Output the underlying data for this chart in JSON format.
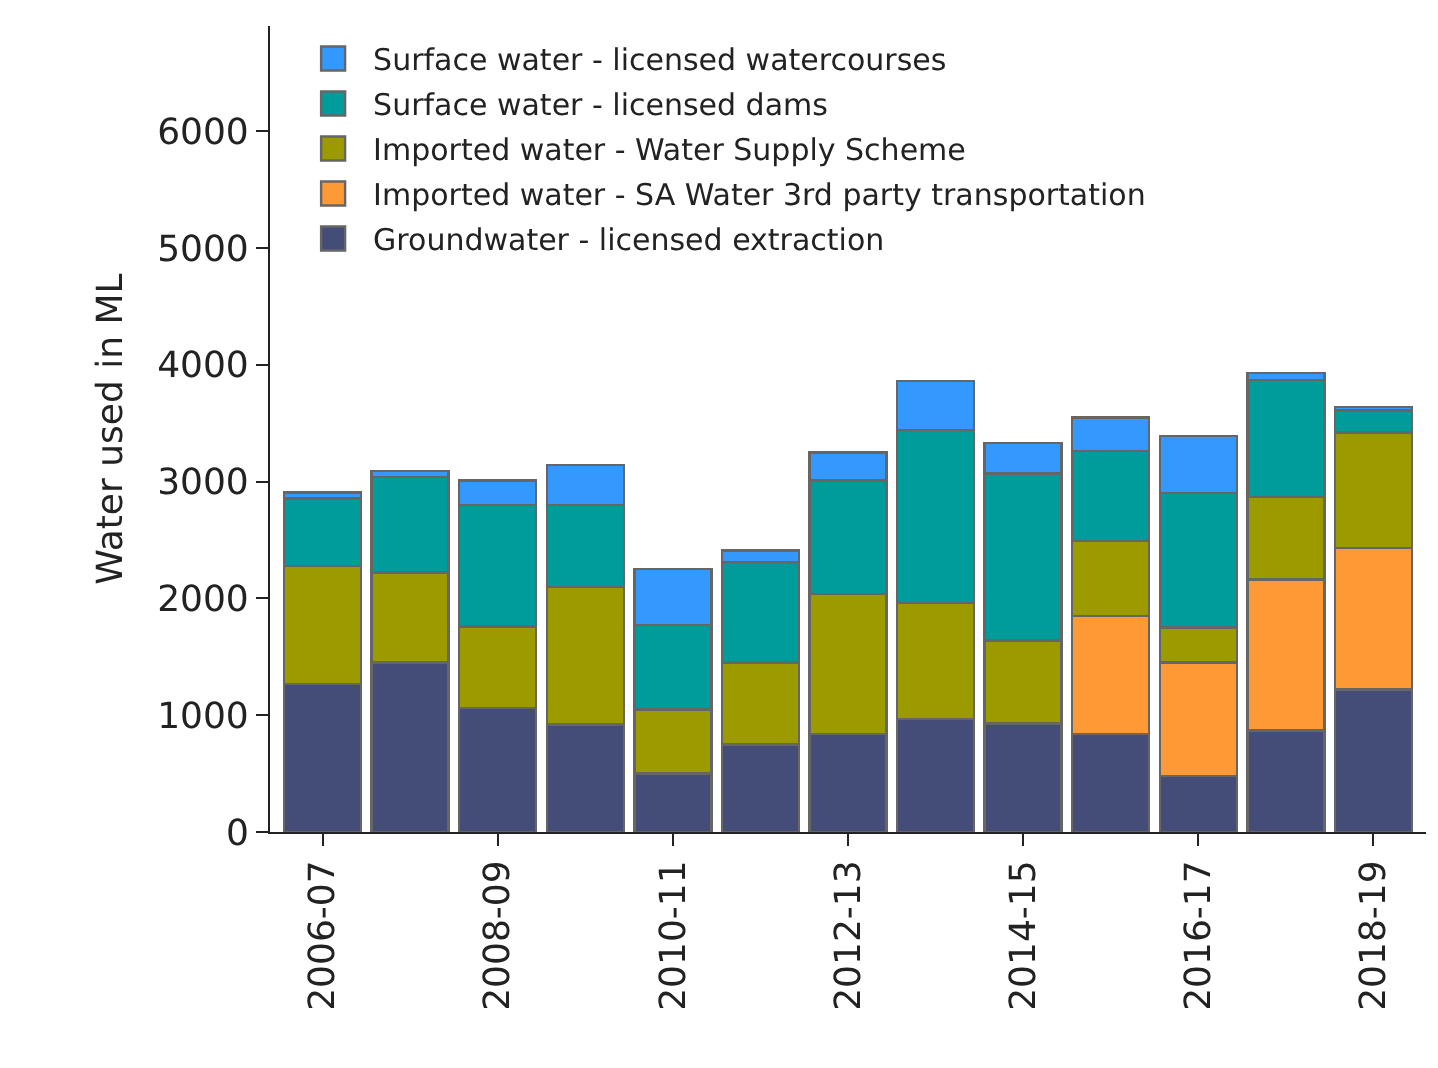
{
  "chart_data": {
    "type": "bar",
    "stacked": true,
    "ylabel": "Water used in ML",
    "categories": [
      "2006-07",
      null,
      "2008-09",
      null,
      "2010-11",
      null,
      "2012-13",
      null,
      "2014-15",
      null,
      "2016-17",
      null,
      "2018-19"
    ],
    "series": [
      {
        "name": "Groundwater - licensed extraction",
        "color": "#434d78",
        "values": [
          1265,
          1450,
          1060,
          920,
          500,
          750,
          840,
          970,
          930,
          840,
          480,
          870,
          1220
        ]
      },
      {
        "name": "Imported water - SA Water 3rd party transportation",
        "color": "#fd9a35",
        "values": [
          0,
          0,
          0,
          0,
          0,
          0,
          0,
          0,
          0,
          1010,
          970,
          1290,
          1210
        ]
      },
      {
        "name": "Imported water - Water Supply Scheme",
        "color": "#9b9b00",
        "values": [
          1010,
          770,
          700,
          1180,
          550,
          700,
          1200,
          990,
          710,
          640,
          300,
          710,
          990
        ]
      },
      {
        "name": "Surface water - licensed dams",
        "color": "#009b9b",
        "values": [
          580,
          820,
          1040,
          700,
          720,
          860,
          970,
          1480,
          1430,
          770,
          1150,
          1000,
          190
        ]
      },
      {
        "name": "Surface water - licensed watercourses",
        "color": "#3399ff",
        "values": [
          50,
          50,
          210,
          340,
          480,
          100,
          240,
          420,
          260,
          290,
          490,
          60,
          30
        ]
      }
    ],
    "ylim": [
      0,
      6900
    ],
    "yticks": [
      0,
      1000,
      2000,
      3000,
      4000,
      5000,
      6000
    ],
    "grid": false,
    "legend": "top left"
  }
}
